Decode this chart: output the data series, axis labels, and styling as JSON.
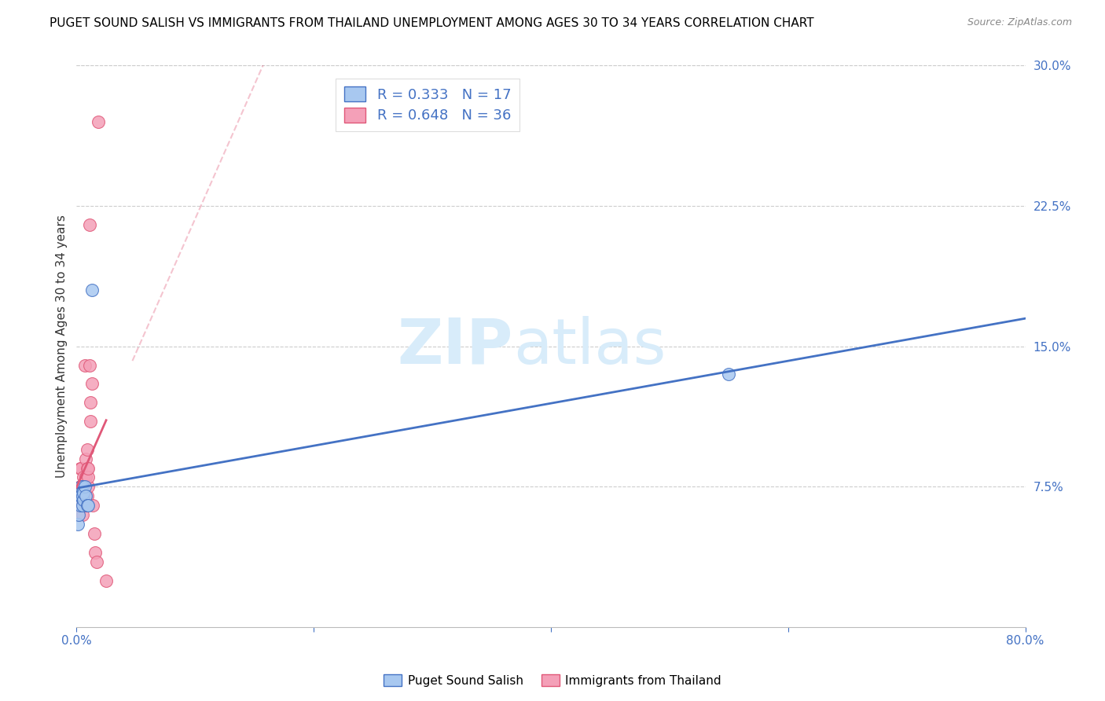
{
  "title": "PUGET SOUND SALISH VS IMMIGRANTS FROM THAILAND UNEMPLOYMENT AMONG AGES 30 TO 34 YEARS CORRELATION CHART",
  "source": "Source: ZipAtlas.com",
  "ylabel": "Unemployment Among Ages 30 to 34 years",
  "legend_label1": "Puget Sound Salish",
  "legend_label2": "Immigrants from Thailand",
  "R1": 0.333,
  "N1": 17,
  "R2": 0.648,
  "N2": 36,
  "color1": "#A8C8F0",
  "color2": "#F4A0B8",
  "line_color1": "#4472C4",
  "line_color2": "#E05878",
  "xlim": [
    0.0,
    0.8
  ],
  "ylim": [
    0.0,
    0.3
  ],
  "xticks": [
    0.0,
    0.2,
    0.4,
    0.6,
    0.8
  ],
  "yticks": [
    0.0,
    0.075,
    0.15,
    0.225,
    0.3
  ],
  "xticklabels": [
    "0.0%",
    "",
    "",
    "",
    "80.0%"
  ],
  "yticklabels": [
    "",
    "7.5%",
    "15.0%",
    "22.5%",
    "30.0%"
  ],
  "puget_x": [
    0.001,
    0.002,
    0.003,
    0.003,
    0.004,
    0.004,
    0.005,
    0.005,
    0.005,
    0.006,
    0.006,
    0.007,
    0.008,
    0.009,
    0.01,
    0.013,
    0.55
  ],
  "puget_y": [
    0.055,
    0.06,
    0.065,
    0.07,
    0.07,
    0.075,
    0.065,
    0.07,
    0.075,
    0.068,
    0.072,
    0.075,
    0.07,
    0.065,
    0.065,
    0.18,
    0.135
  ],
  "thai_x": [
    0.001,
    0.001,
    0.002,
    0.002,
    0.003,
    0.003,
    0.004,
    0.004,
    0.005,
    0.005,
    0.005,
    0.006,
    0.006,
    0.006,
    0.007,
    0.007,
    0.007,
    0.008,
    0.008,
    0.009,
    0.009,
    0.009,
    0.01,
    0.01,
    0.01,
    0.011,
    0.011,
    0.012,
    0.012,
    0.013,
    0.014,
    0.015,
    0.016,
    0.017,
    0.018,
    0.025
  ],
  "thai_y": [
    0.065,
    0.07,
    0.06,
    0.065,
    0.075,
    0.085,
    0.075,
    0.085,
    0.06,
    0.065,
    0.07,
    0.07,
    0.075,
    0.08,
    0.065,
    0.07,
    0.14,
    0.08,
    0.09,
    0.07,
    0.085,
    0.095,
    0.075,
    0.08,
    0.085,
    0.14,
    0.215,
    0.11,
    0.12,
    0.13,
    0.065,
    0.05,
    0.04,
    0.035,
    0.27,
    0.025
  ],
  "watermark_zip": "ZIP",
  "watermark_atlas": "atlas",
  "watermark_color": "#D8ECFA",
  "background_color": "#FFFFFF",
  "grid_color": "#CCCCCC",
  "title_fontsize": 11,
  "axis_fontsize": 11,
  "tick_fontsize": 11,
  "tick_color": "#4472C4"
}
